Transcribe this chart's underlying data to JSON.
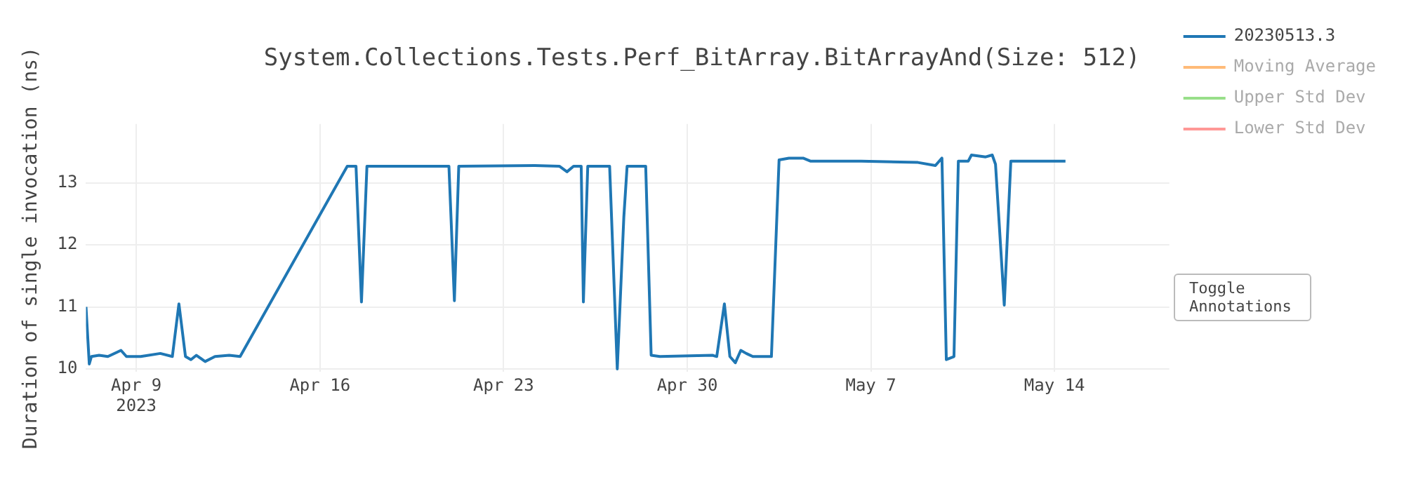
{
  "chart_data": {
    "type": "line",
    "title": "System.Collections.Tests.Perf_BitArray.BitArrayAnd(Size: 512)",
    "ylabel": "Duration of single invocation (ns)",
    "x": [
      "2023-04-07T02:00",
      "2023-04-07T05:00",
      "2023-04-07T07:00",
      "2023-04-07T14:00",
      "2023-04-07T22:00",
      "2023-04-08T10:00",
      "2023-04-08T15:00",
      "2023-04-09T04:00",
      "2023-04-09T22:00",
      "2023-04-10T09:00",
      "2023-04-10T15:00",
      "2023-04-10T21:00",
      "2023-04-11T02:00",
      "2023-04-11T07:00",
      "2023-04-11T15:00",
      "2023-04-12T00:00",
      "2023-04-12T13:00",
      "2023-04-12T23:00",
      "2023-04-17T01:00",
      "2023-04-17T09:00",
      "2023-04-17T14:00",
      "2023-04-17T19:00",
      "2023-04-20T22:00",
      "2023-04-21T03:00",
      "2023-04-21T07:00",
      "2023-04-24T04:00",
      "2023-04-25T03:00",
      "2023-04-25T10:00",
      "2023-04-25T16:00",
      "2023-04-25T23:00",
      "2023-04-26T01:00",
      "2023-04-26T05:00",
      "2023-04-27T01:00",
      "2023-04-27T08:00",
      "2023-04-27T14:00",
      "2023-04-27T17:00",
      "2023-04-28T10:00",
      "2023-04-28T15:00",
      "2023-04-28T23:00",
      "2023-04-30T23:00",
      "2023-05-01T03:00",
      "2023-05-01T10:00",
      "2023-05-01T15:00",
      "2023-05-01T20:00",
      "2023-05-02T01:00",
      "2023-05-02T06:00",
      "2023-05-02T12:00",
      "2023-05-03T05:00",
      "2023-05-03T12:00",
      "2023-05-03T21:00",
      "2023-05-04T10:00",
      "2023-05-04T17:00",
      "2023-05-06T15:00",
      "2023-05-08T19:00",
      "2023-05-09T11:00",
      "2023-05-09T17:00",
      "2023-05-09T21:00",
      "2023-05-10T04:00",
      "2023-05-10T08:00",
      "2023-05-10T17:00",
      "2023-05-10T20:00",
      "2023-05-11T09:00",
      "2023-05-11T15:00",
      "2023-05-11T18:00",
      "2023-05-12T02:00",
      "2023-05-12T08:00",
      "2023-05-14T10:00"
    ],
    "series": [
      {
        "name": "20230513.3",
        "color": "#1f77b4",
        "values": [
          11.0,
          10.08,
          10.2,
          10.22,
          10.2,
          10.3,
          10.2,
          10.2,
          10.25,
          10.2,
          11.05,
          10.2,
          10.15,
          10.22,
          10.12,
          10.2,
          10.22,
          10.2,
          13.27,
          13.27,
          11.08,
          13.27,
          13.27,
          11.1,
          13.27,
          13.28,
          13.27,
          13.18,
          13.27,
          13.27,
          11.08,
          13.27,
          13.27,
          10.0,
          12.45,
          13.27,
          13.27,
          10.22,
          10.2,
          10.22,
          10.2,
          11.05,
          10.2,
          10.1,
          10.3,
          10.25,
          10.2,
          10.2,
          13.37,
          13.4,
          13.4,
          13.35,
          13.35,
          13.33,
          13.28,
          13.4,
          10.15,
          10.2,
          13.35,
          13.35,
          13.45,
          13.42,
          13.45,
          13.3,
          11.03,
          13.35,
          13.35
        ]
      },
      {
        "name": "Moving Average",
        "color": "#ffbb78",
        "values": [
          null,
          null,
          null,
          null,
          null,
          null,
          null,
          null,
          null,
          null,
          null,
          null,
          null,
          null,
          null,
          null,
          null,
          null,
          null,
          null,
          null,
          null,
          null,
          null,
          null,
          null,
          null,
          null,
          null,
          null,
          null,
          null,
          null,
          null,
          null,
          null,
          null,
          null,
          null,
          null,
          null,
          null,
          null,
          null,
          null,
          null,
          null,
          null,
          null,
          null,
          null,
          null,
          null,
          null,
          null,
          null,
          null,
          null,
          null,
          null,
          null,
          null,
          null,
          null,
          null,
          null,
          null
        ]
      },
      {
        "name": "Upper Std Dev",
        "color": "#98df8a",
        "values": [
          null,
          null,
          null,
          null,
          null,
          null,
          null,
          null,
          null,
          null,
          null,
          null,
          null,
          null,
          null,
          null,
          null,
          null,
          null,
          null,
          null,
          null,
          null,
          null,
          null,
          null,
          null,
          null,
          null,
          null,
          null,
          null,
          null,
          null,
          null,
          null,
          null,
          null,
          null,
          null,
          null,
          null,
          null,
          null,
          null,
          null,
          null,
          null,
          null,
          null,
          null,
          null,
          null,
          null,
          null,
          null,
          null,
          null,
          null,
          null,
          null,
          null,
          null,
          null,
          null,
          null,
          null
        ]
      },
      {
        "name": "Lower Std Dev",
        "color": "#ff9896",
        "values": [
          null,
          null,
          null,
          null,
          null,
          null,
          null,
          null,
          null,
          null,
          null,
          null,
          null,
          null,
          null,
          null,
          null,
          null,
          null,
          null,
          null,
          null,
          null,
          null,
          null,
          null,
          null,
          null,
          null,
          null,
          null,
          null,
          null,
          null,
          null,
          null,
          null,
          null,
          null,
          null,
          null,
          null,
          null,
          null,
          null,
          null,
          null,
          null,
          null,
          null,
          null,
          null,
          null,
          null,
          null,
          null,
          null,
          null,
          null,
          null,
          null,
          null,
          null,
          null,
          null,
          null,
          null
        ]
      }
    ],
    "xlim": [
      "2023-04-07T02:00",
      "2023-05-18T09:00"
    ],
    "xticks": [
      {
        "value": "2023-04-09",
        "label": "Apr 9\n2023"
      },
      {
        "value": "2023-04-16",
        "label": "Apr 16"
      },
      {
        "value": "2023-04-23",
        "label": "Apr 23"
      },
      {
        "value": "2023-04-30",
        "label": "Apr 30"
      },
      {
        "value": "2023-05-07",
        "label": "May 7"
      },
      {
        "value": "2023-05-14",
        "label": "May 14"
      }
    ],
    "ylim": [
      9.95,
      13.95
    ],
    "yticks": [
      10,
      11,
      12,
      13
    ],
    "grid": true,
    "legend": "top right",
    "annotations": [
      "Toggle Annotations"
    ]
  }
}
